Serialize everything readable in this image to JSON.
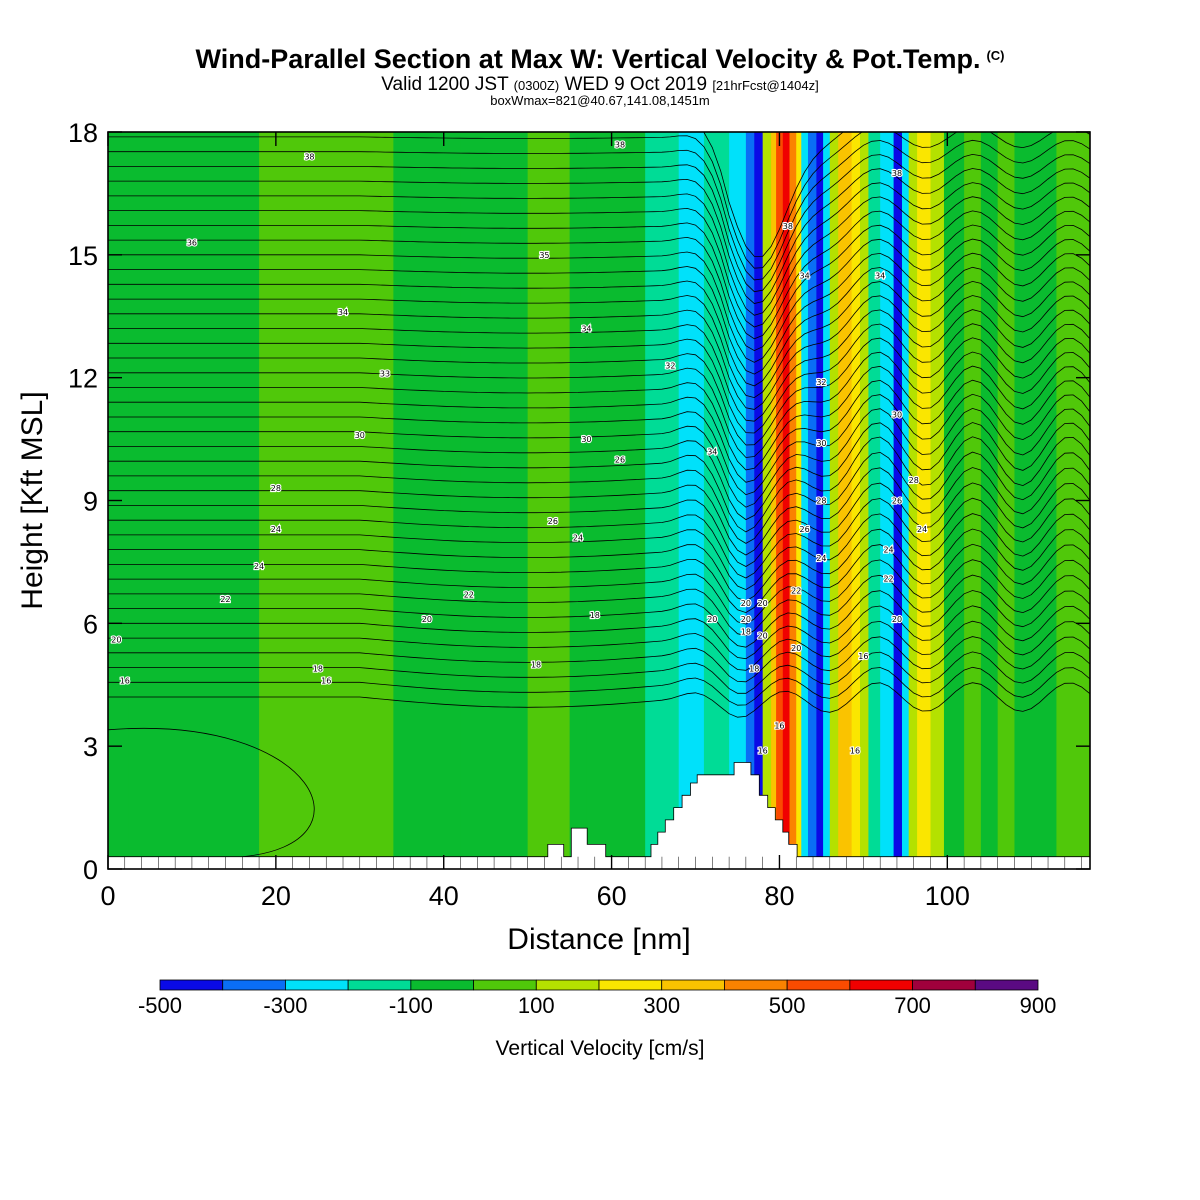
{
  "header": {
    "title": "Wind-Parallel Section at Max W: Vertical Velocity & Pot.Temp.",
    "title_mark": "(C)",
    "subtitle_valid": "Valid 1200 JST",
    "subtitle_z": "(0300Z)",
    "subtitle_date": "WED 9 Oct 2019",
    "subtitle_fcst": "[21hrFcst@1404z]",
    "box_line": "boxWmax=821@40.67,141.08,1451m"
  },
  "chart_data": {
    "type": "heatmap",
    "xlabel": "Distance [nm]",
    "ylabel": "Height [Kft MSL]",
    "xlim": [
      0,
      117
    ],
    "ylim": [
      0,
      18
    ],
    "x_ticks": [
      0,
      20,
      40,
      60,
      80,
      100
    ],
    "y_ticks": [
      0,
      3,
      6,
      9,
      12,
      15,
      18
    ],
    "colorbar": {
      "label": "Vertical Velocity [cm/s]",
      "bounds": [
        -500,
        -400,
        -300,
        -200,
        -100,
        0,
        100,
        200,
        300,
        400,
        500,
        600,
        700,
        800,
        900
      ],
      "tick_labels": [
        "-500",
        "-300",
        "-100",
        "100",
        "300",
        "500",
        "700",
        "900"
      ],
      "tick_values": [
        -500,
        -300,
        -100,
        100,
        300,
        500,
        700,
        900
      ],
      "colors": [
        "#0a0ae6",
        "#0a6ef5",
        "#00e1fa",
        "#00dc96",
        "#0abb2f",
        "#50c80a",
        "#b4e100",
        "#fae600",
        "#fac300",
        "#fa8200",
        "#fa4b00",
        "#f00000",
        "#a0003c",
        "#5a0a82"
      ]
    },
    "columns": [
      {
        "x0": 0,
        "x1": 2.4,
        "value": -50
      },
      {
        "x0": 2.4,
        "x1": 18,
        "value": -30
      },
      {
        "x0": 18,
        "x1": 28,
        "value": 40
      },
      {
        "x0": 28,
        "x1": 34,
        "value": 20
      },
      {
        "x0": 34,
        "x1": 42,
        "value": -40
      },
      {
        "x0": 42,
        "x1": 50,
        "value": -30
      },
      {
        "x0": 50,
        "x1": 55,
        "value": 40
      },
      {
        "x0": 55,
        "x1": 57,
        "value": -50
      },
      {
        "x0": 57,
        "x1": 64,
        "value": -30
      },
      {
        "x0": 64,
        "x1": 68,
        "value": -120
      },
      {
        "x0": 68,
        "x1": 71,
        "value": -210
      },
      {
        "x0": 71,
        "x1": 74,
        "value": -150
      },
      {
        "x0": 74,
        "x1": 76,
        "value": -260
      },
      {
        "x0": 76,
        "x1": 77,
        "value": -330
      },
      {
        "x0": 77,
        "x1": 78,
        "value": -430
      },
      {
        "x0": 78,
        "x1": 79,
        "value": 150
      },
      {
        "x0": 79,
        "x1": 79.6,
        "value": 350
      },
      {
        "x0": 79.6,
        "x1": 80.4,
        "value": 540
      },
      {
        "x0": 80.4,
        "x1": 81.2,
        "value": 650
      },
      {
        "x0": 81.2,
        "x1": 82,
        "value": 470
      },
      {
        "x0": 82,
        "x1": 82.6,
        "value": 250
      },
      {
        "x0": 82.6,
        "x1": 83.4,
        "value": -250
      },
      {
        "x0": 83.4,
        "x1": 84.4,
        "value": -380
      },
      {
        "x0": 84.4,
        "x1": 85.2,
        "value": -450
      },
      {
        "x0": 85.2,
        "x1": 86,
        "value": -230
      },
      {
        "x0": 86,
        "x1": 87,
        "value": 150
      },
      {
        "x0": 87,
        "x1": 88.6,
        "value": 380
      },
      {
        "x0": 88.6,
        "x1": 89.6,
        "value": 250
      },
      {
        "x0": 89.6,
        "x1": 90.6,
        "value": 150
      },
      {
        "x0": 90.6,
        "x1": 92,
        "value": -150
      },
      {
        "x0": 92,
        "x1": 93.6,
        "value": -260
      },
      {
        "x0": 93.6,
        "x1": 94.6,
        "value": -440
      },
      {
        "x0": 94.6,
        "x1": 95.4,
        "value": -220
      },
      {
        "x0": 95.4,
        "x1": 96.4,
        "value": 150
      },
      {
        "x0": 96.4,
        "x1": 98,
        "value": 260
      },
      {
        "x0": 98,
        "x1": 99.6,
        "value": 150
      },
      {
        "x0": 99.6,
        "x1": 102,
        "value": -40
      },
      {
        "x0": 102,
        "x1": 104,
        "value": 40
      },
      {
        "x0": 104,
        "x1": 106,
        "value": -40
      },
      {
        "x0": 106,
        "x1": 108,
        "value": 40
      },
      {
        "x0": 108,
        "x1": 113,
        "value": -30
      },
      {
        "x0": 113,
        "x1": 117,
        "value": 40
      }
    ],
    "terrain": [
      [
        0,
        0.3
      ],
      [
        52.4,
        0.3
      ],
      [
        52.4,
        0.6
      ],
      [
        54.3,
        0.6
      ],
      [
        54.3,
        0.3
      ],
      [
        55.2,
        0.3
      ],
      [
        55.2,
        1.0
      ],
      [
        57.1,
        1.0
      ],
      [
        57.1,
        0.6
      ],
      [
        59.3,
        0.6
      ],
      [
        59.3,
        0.3
      ],
      [
        64.7,
        0.3
      ],
      [
        64.7,
        0.6
      ],
      [
        65.5,
        0.6
      ],
      [
        65.5,
        0.9
      ],
      [
        66.4,
        0.9
      ],
      [
        66.4,
        1.2
      ],
      [
        67.4,
        1.2
      ],
      [
        67.4,
        1.5
      ],
      [
        68.4,
        1.5
      ],
      [
        68.4,
        1.8
      ],
      [
        69.4,
        1.8
      ],
      [
        69.4,
        2.1
      ],
      [
        70.2,
        2.1
      ],
      [
        70.2,
        2.3
      ],
      [
        74.6,
        2.3
      ],
      [
        74.6,
        2.6
      ],
      [
        76.6,
        2.6
      ],
      [
        76.6,
        2.3
      ],
      [
        77.6,
        2.3
      ],
      [
        77.6,
        1.8
      ],
      [
        78.6,
        1.8
      ],
      [
        78.6,
        1.5
      ],
      [
        79.5,
        1.5
      ],
      [
        79.5,
        1.2
      ],
      [
        80.4,
        1.2
      ],
      [
        80.4,
        0.9
      ],
      [
        81.1,
        0.9
      ],
      [
        81.1,
        0.6
      ],
      [
        82.1,
        0.6
      ],
      [
        82.1,
        0.3
      ],
      [
        117,
        0.3
      ]
    ],
    "theta_labels": [
      {
        "x": 24,
        "y": 17.4,
        "text": "38"
      },
      {
        "x": 61,
        "y": 17.7,
        "text": "38"
      },
      {
        "x": 10,
        "y": 15.3,
        "text": "36"
      },
      {
        "x": 52,
        "y": 15.0,
        "text": "35"
      },
      {
        "x": 28,
        "y": 13.6,
        "text": "34"
      },
      {
        "x": 57,
        "y": 13.2,
        "text": "34"
      },
      {
        "x": 33,
        "y": 12.1,
        "text": "33"
      },
      {
        "x": 67,
        "y": 12.3,
        "text": "32"
      },
      {
        "x": 30,
        "y": 10.6,
        "text": "30"
      },
      {
        "x": 57,
        "y": 10.5,
        "text": "30"
      },
      {
        "x": 61,
        "y": 10.0,
        "text": "26"
      },
      {
        "x": 20,
        "y": 9.3,
        "text": "28"
      },
      {
        "x": 53,
        "y": 8.5,
        "text": "26"
      },
      {
        "x": 20,
        "y": 8.3,
        "text": "24"
      },
      {
        "x": 56,
        "y": 8.1,
        "text": "24"
      },
      {
        "x": 18,
        "y": 7.4,
        "text": "24"
      },
      {
        "x": 14,
        "y": 6.6,
        "text": "22"
      },
      {
        "x": 43,
        "y": 6.7,
        "text": "22"
      },
      {
        "x": 38,
        "y": 6.1,
        "text": "20"
      },
      {
        "x": 58,
        "y": 6.2,
        "text": "18"
      },
      {
        "x": 1,
        "y": 5.6,
        "text": "20"
      },
      {
        "x": 25,
        "y": 4.9,
        "text": "18"
      },
      {
        "x": 51,
        "y": 5.0,
        "text": "18"
      },
      {
        "x": 2,
        "y": 4.6,
        "text": "16"
      },
      {
        "x": 26,
        "y": 4.6,
        "text": "16"
      },
      {
        "x": 72,
        "y": 10.2,
        "text": "34"
      },
      {
        "x": 81,
        "y": 15.7,
        "text": "38"
      },
      {
        "x": 83,
        "y": 14.5,
        "text": "34"
      },
      {
        "x": 94,
        "y": 17.0,
        "text": "38"
      },
      {
        "x": 92,
        "y": 14.5,
        "text": "34"
      },
      {
        "x": 85,
        "y": 11.9,
        "text": "32"
      },
      {
        "x": 94,
        "y": 11.1,
        "text": "30"
      },
      {
        "x": 85,
        "y": 10.4,
        "text": "30"
      },
      {
        "x": 96,
        "y": 9.5,
        "text": "28"
      },
      {
        "x": 85,
        "y": 9.0,
        "text": "28"
      },
      {
        "x": 94,
        "y": 9.0,
        "text": "26"
      },
      {
        "x": 83,
        "y": 8.3,
        "text": "26"
      },
      {
        "x": 97,
        "y": 8.3,
        "text": "24"
      },
      {
        "x": 85,
        "y": 7.6,
        "text": "24"
      },
      {
        "x": 93,
        "y": 7.8,
        "text": "24"
      },
      {
        "x": 82,
        "y": 6.8,
        "text": "22"
      },
      {
        "x": 93,
        "y": 7.1,
        "text": "22"
      },
      {
        "x": 76,
        "y": 6.5,
        "text": "20"
      },
      {
        "x": 78,
        "y": 6.5,
        "text": "20"
      },
      {
        "x": 76,
        "y": 6.1,
        "text": "20"
      },
      {
        "x": 72,
        "y": 6.1,
        "text": "20"
      },
      {
        "x": 76,
        "y": 5.8,
        "text": "18"
      },
      {
        "x": 78,
        "y": 5.7,
        "text": "20"
      },
      {
        "x": 82,
        "y": 5.4,
        "text": "20"
      },
      {
        "x": 94,
        "y": 6.1,
        "text": "20"
      },
      {
        "x": 90,
        "y": 5.2,
        "text": "16"
      },
      {
        "x": 77,
        "y": 4.9,
        "text": "18"
      },
      {
        "x": 80,
        "y": 3.5,
        "text": "16"
      },
      {
        "x": 78,
        "y": 2.9,
        "text": "16"
      },
      {
        "x": 89,
        "y": 2.9,
        "text": "16"
      }
    ]
  }
}
